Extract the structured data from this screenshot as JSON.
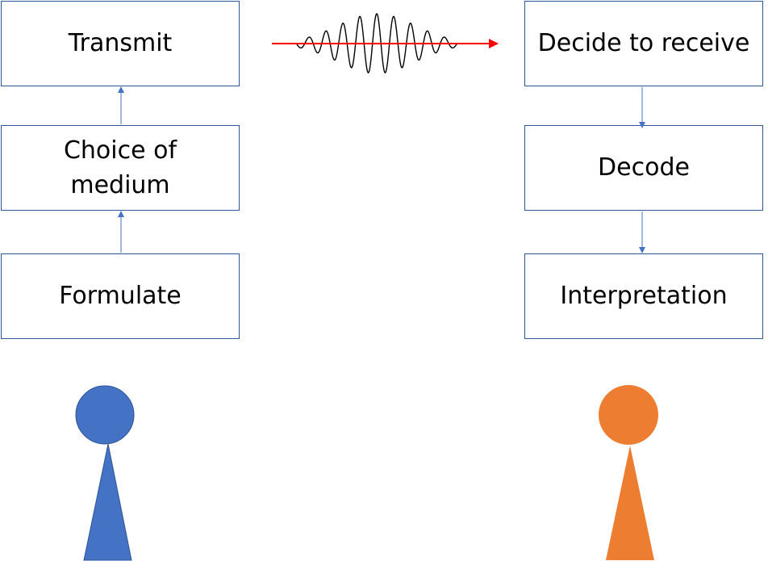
{
  "sender": {
    "steps": [
      "Formulate",
      "Choice of medium",
      "Transmit"
    ],
    "color": "#4472c4"
  },
  "receiver": {
    "steps": [
      "Decide to receive",
      "Decode",
      "Interpretation"
    ],
    "color": "#ed7d31"
  },
  "colors": {
    "box_border": "#2f5597",
    "connector": "#4472c4",
    "signal_arrow": "#ff0000",
    "wave": "#000000"
  },
  "icons": [
    "signal-wave-icon",
    "sender-person-icon",
    "receiver-person-icon"
  ]
}
